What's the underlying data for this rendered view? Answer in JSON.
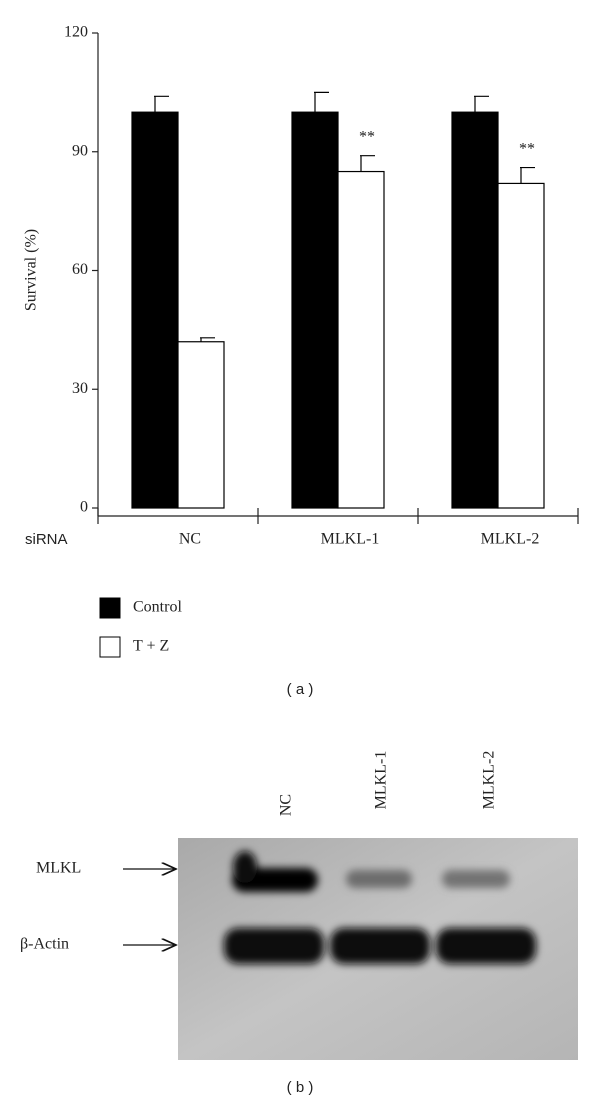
{
  "chart_data": {
    "type": "bar",
    "ylabel": "Survival (%)",
    "xlabel": "siRNA",
    "categories": [
      "NC",
      "MLKL-1",
      "MLKL-2"
    ],
    "series": [
      {
        "name": "Control",
        "color": "#000000",
        "values": [
          100,
          100,
          100
        ],
        "errors": [
          4,
          5,
          4
        ]
      },
      {
        "name": "T + Z",
        "color": "#ffffff",
        "values": [
          42,
          85,
          82
        ],
        "errors": [
          1,
          4,
          4
        ],
        "annotations": [
          null,
          "**",
          "**"
        ]
      }
    ],
    "ylim": [
      0,
      120
    ],
    "yticks": [
      0,
      30,
      60,
      90,
      120
    ],
    "grid": false,
    "caption": "( a )"
  },
  "blot": {
    "lanes": [
      "NC",
      "MLKL-1",
      "MLKL-2"
    ],
    "rows": [
      "MLKL",
      "β-Actin"
    ],
    "caption": "( b )"
  }
}
